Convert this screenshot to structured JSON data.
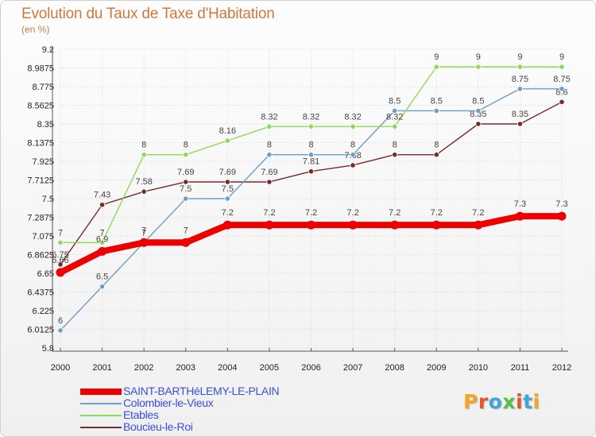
{
  "title": "Evolution du Taux de Taxe d'Habitation",
  "unit_label": "(en %)",
  "logo_text": "Proxiti",
  "logo_colors": [
    "#f5a623",
    "#e4572e",
    "#3fa7d6",
    "#59c142",
    "#e4572e",
    "#3fa7d6",
    "#f5a623"
  ],
  "chart_data": {
    "type": "line",
    "title": "Evolution du Taux de Taxe d'Habitation",
    "ylabel": "(en %)",
    "xlabel": "",
    "x": [
      "2000",
      "2001",
      "2002",
      "2003",
      "2004",
      "2005",
      "2006",
      "2007",
      "2008",
      "2009",
      "2010",
      "2011",
      "2012"
    ],
    "ylim": [
      5.8,
      9.2
    ],
    "yticks": [
      "9.2",
      "8.9875",
      "8.775",
      "8.5625",
      "8.35",
      "8.1375",
      "7.925",
      "7.7125",
      "7.5",
      "7.2875",
      "7.075",
      "6.8625",
      "6.65",
      "6.4375",
      "6.225",
      "6.0125",
      "5.8"
    ],
    "grid": true,
    "legend_position": "bottom-left",
    "series": [
      {
        "name": "SAINT-BARTHéLEMY-LE-PLAIN",
        "color": "#ee0000",
        "values": [
          6.66,
          6.9,
          7,
          7,
          7.2,
          7.2,
          7.2,
          7.2,
          7.2,
          7.2,
          7.2,
          7.3,
          7.3
        ],
        "labels": [
          "6.66",
          "6.9",
          "7",
          "7",
          "7.2",
          "7.2",
          "7.2",
          "7.2",
          "7.2",
          "7.2",
          "7.2",
          "7.3",
          "7.3"
        ]
      },
      {
        "name": "Colombier-le-Vieux",
        "color": "#6b9fc8",
        "values": [
          6,
          6.5,
          7,
          7.5,
          7.5,
          8,
          8,
          8,
          8.5,
          8.5,
          8.5,
          8.75,
          8.75
        ],
        "labels": [
          "6",
          "6.5",
          "7",
          "7.5",
          "7.5",
          "8",
          "8",
          "8",
          "8.5",
          "8.5",
          "8.5",
          "8.75",
          "8.75"
        ]
      },
      {
        "name": "Etables",
        "color": "#8fd85a",
        "values": [
          7,
          7,
          8,
          8,
          8.16,
          8.32,
          8.32,
          8.32,
          8.32,
          9,
          9,
          9,
          9
        ],
        "labels": [
          "7",
          "7",
          "8",
          "8",
          "8.16",
          "8.32",
          "8.32",
          "8.32",
          "8.32",
          "9",
          "9",
          "9",
          "9"
        ]
      },
      {
        "name": "Boucieu-le-Roi",
        "color": "#7a2a2a",
        "values": [
          6.75,
          7.43,
          7.58,
          7.69,
          7.69,
          7.69,
          7.81,
          7.88,
          8,
          8,
          8.35,
          8.35,
          8.6
        ],
        "labels": [
          "6.75",
          "7.43",
          "7.58",
          "7.69",
          "7.69",
          "7.69",
          "7.81",
          "7.88",
          "8",
          "8",
          "8.35",
          "8.35",
          "8.6"
        ]
      }
    ]
  }
}
